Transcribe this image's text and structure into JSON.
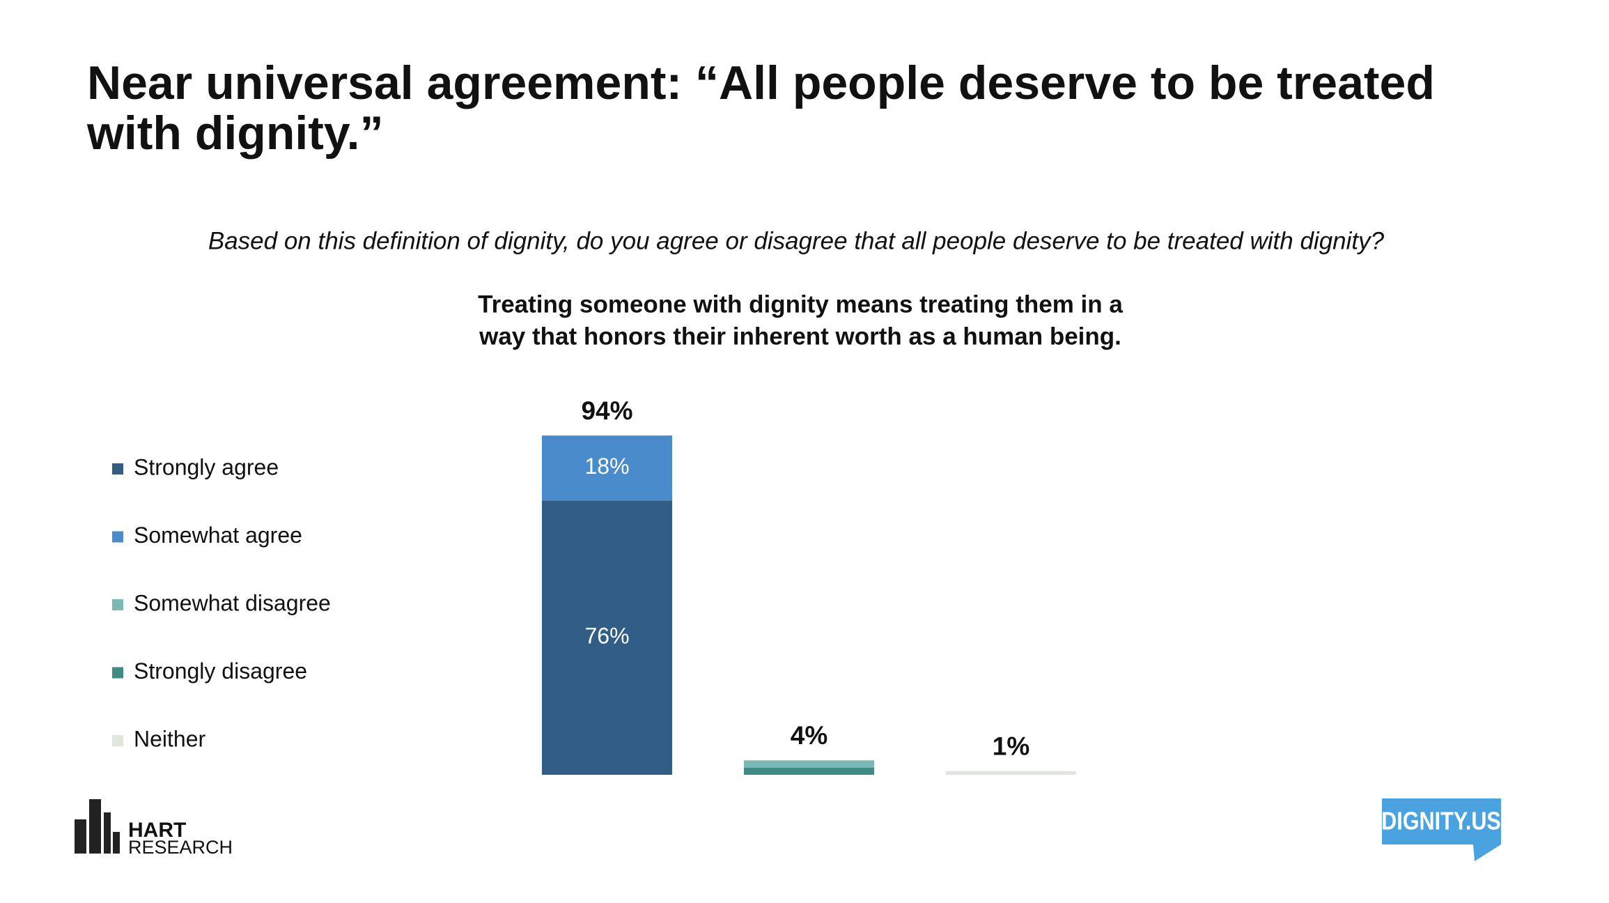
{
  "chart_data": {
    "type": "stacked_bar",
    "title": [
      "Near universal agreement: “All people deserve to be treated",
      "with dignity.”"
    ],
    "subtitle": "Based on this definition of dignity, do you agree or disagree that all people deserve to be treated with dignity?",
    "definition": [
      "Treating someone with dignity means treating them in a",
      "way that honors their inherent worth as a human being."
    ],
    "categories": [
      null,
      null,
      null
    ],
    "series": [
      {
        "name": "Strongly agree",
        "color": "#325d87",
        "values": [
          76,
          null,
          null
        ],
        "value_labels": [
          "76%",
          null,
          null
        ]
      },
      {
        "name": "Somewhat agree",
        "color": "#4a8ccb",
        "values": [
          18,
          null,
          null
        ],
        "value_labels": [
          "18%",
          null,
          null
        ]
      },
      {
        "name": "Strongly disagree",
        "color": "#3f8a82",
        "values": [
          null,
          2,
          null
        ]
      },
      {
        "name": "Somewhat disagree",
        "color": "#7ab9b5",
        "values": [
          null,
          2,
          null
        ]
      },
      {
        "name": "Neither",
        "color": "#dfe6dc",
        "values": [
          null,
          null,
          1
        ]
      }
    ],
    "legend_order": [
      0,
      1,
      3,
      2,
      4
    ],
    "totals": [
      94,
      4,
      1
    ],
    "total_labels": [
      "94%",
      "4%",
      "1%"
    ],
    "ylim": [
      0,
      100
    ]
  },
  "branding": {
    "left": [
      "HART",
      "RESEARCH"
    ],
    "right": "DIGNITY.US"
  }
}
